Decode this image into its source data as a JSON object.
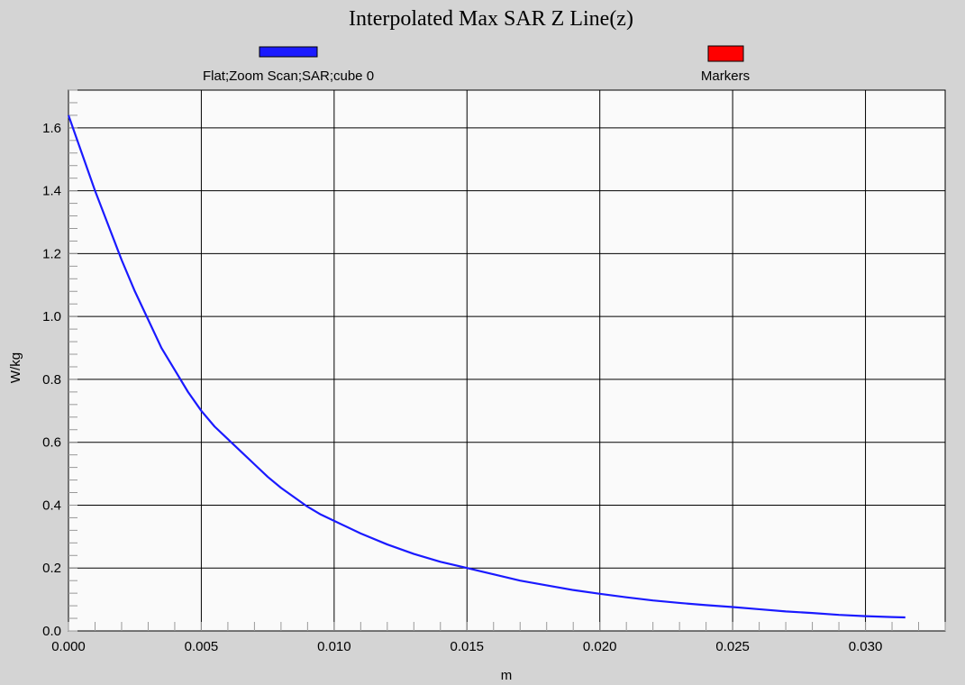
{
  "chart_data": {
    "type": "line",
    "title": "Interpolated Max SAR Z Line(z)",
    "xlabel": "m",
    "ylabel": "W/kg",
    "xlim": [
      0.0,
      0.033
    ],
    "ylim": [
      0.0,
      1.72
    ],
    "x_ticks": [
      "0.000",
      "0.005",
      "0.010",
      "0.015",
      "0.020",
      "0.025",
      "0.030"
    ],
    "x_tick_values": [
      0.0,
      0.005,
      0.01,
      0.015,
      0.02,
      0.025,
      0.03
    ],
    "y_ticks": [
      "0.0",
      "0.2",
      "0.4",
      "0.6",
      "0.8",
      "1.0",
      "1.2",
      "1.4",
      "1.6"
    ],
    "y_tick_values": [
      0.0,
      0.2,
      0.4,
      0.6,
      0.8,
      1.0,
      1.2,
      1.4,
      1.6
    ],
    "grid": true,
    "legend_position": "top",
    "series": [
      {
        "name": "Flat;Zoom Scan;SAR;cube 0",
        "color": "#1a1aff",
        "x": [
          0.0,
          0.0005,
          0.001,
          0.0015,
          0.002,
          0.0025,
          0.003,
          0.0035,
          0.004,
          0.0045,
          0.005,
          0.0055,
          0.006,
          0.0065,
          0.007,
          0.0075,
          0.008,
          0.0085,
          0.009,
          0.0095,
          0.01,
          0.011,
          0.012,
          0.013,
          0.014,
          0.015,
          0.016,
          0.017,
          0.018,
          0.019,
          0.02,
          0.021,
          0.022,
          0.023,
          0.024,
          0.025,
          0.026,
          0.027,
          0.028,
          0.029,
          0.03,
          0.031,
          0.0315
        ],
        "values": [
          1.64,
          1.52,
          1.4,
          1.29,
          1.18,
          1.08,
          0.99,
          0.9,
          0.83,
          0.76,
          0.7,
          0.65,
          0.61,
          0.57,
          0.53,
          0.49,
          0.455,
          0.425,
          0.395,
          0.37,
          0.35,
          0.31,
          0.275,
          0.245,
          0.22,
          0.2,
          0.18,
          0.16,
          0.145,
          0.13,
          0.118,
          0.107,
          0.097,
          0.089,
          0.082,
          0.076,
          0.069,
          0.062,
          0.057,
          0.051,
          0.047,
          0.044,
          0.043
        ]
      }
    ],
    "legend": [
      {
        "name": "Flat;Zoom Scan;SAR;cube 0",
        "color": "#1a1aff"
      },
      {
        "name": "Markers",
        "color": "#ff0000"
      }
    ]
  }
}
